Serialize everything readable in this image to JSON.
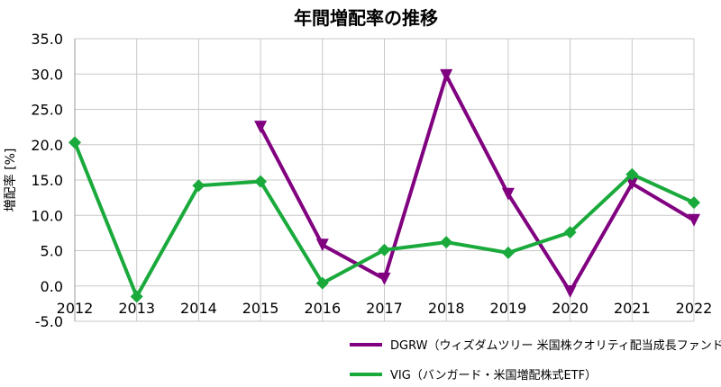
{
  "chart_data": {
    "type": "line",
    "title": "年間増配率の推移",
    "xlabel": "",
    "ylabel": "増配率 [%]",
    "categories": [
      "2012",
      "2013",
      "2014",
      "2015",
      "2016",
      "2017",
      "2018",
      "2019",
      "2020",
      "2021",
      "2022"
    ],
    "ylim": [
      -5,
      35
    ],
    "yticks": [
      "35.0",
      "30.0",
      "25.0",
      "20.0",
      "15.0",
      "10.0",
      "5.0",
      "0.0",
      "-5.0"
    ],
    "ytick_values": [
      35,
      30,
      25,
      20,
      15,
      10,
      5,
      0,
      -5
    ],
    "grid": true,
    "legend_position": "bottom-right",
    "series": [
      {
        "name": "DGRW（ウィズダムツリー 米国株クオリティ配当成長ファンド）",
        "color": "#800080",
        "marker": "triangle-down",
        "values": [
          null,
          null,
          null,
          22.5,
          5.8,
          1.0,
          29.8,
          13.0,
          -0.8,
          14.5,
          9.3
        ]
      },
      {
        "name": "VIG（バンガード・米国増配株式ETF）",
        "color": "#1aaa3c",
        "marker": "diamond",
        "values": [
          20.3,
          -1.5,
          14.2,
          14.8,
          0.4,
          5.1,
          6.2,
          4.7,
          7.6,
          15.8,
          11.8
        ]
      }
    ]
  }
}
